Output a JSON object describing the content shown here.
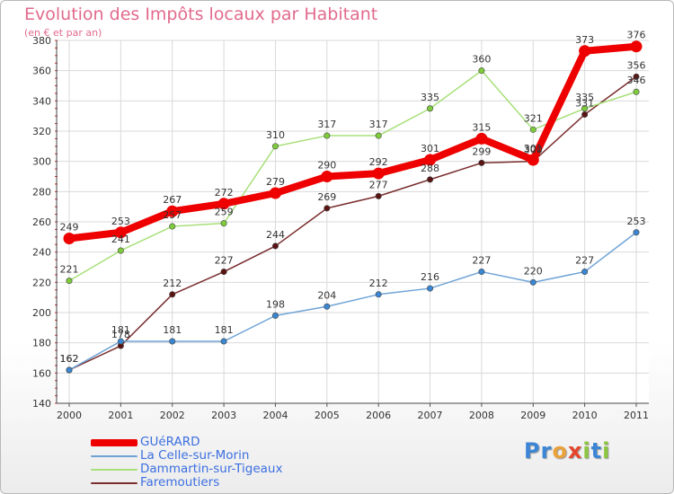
{
  "title": "Evolution des Impôts locaux par Habitant",
  "subtitle": "(en € et par an)",
  "logo": {
    "text": "Proxiti",
    "letters": [
      {
        "char": "P",
        "color": "#3d86d6"
      },
      {
        "char": "r",
        "color": "#3d86d6"
      },
      {
        "char": "o",
        "color": "#e9a23b"
      },
      {
        "char": "x",
        "color": "#e6452d"
      },
      {
        "char": "i",
        "color": "#8cc63f"
      },
      {
        "char": "t",
        "color": "#3d86d6"
      },
      {
        "char": "i",
        "color": "#8cc63f"
      }
    ]
  },
  "chart_data": {
    "type": "line",
    "title": "Evolution des Impôts locaux par Habitant",
    "subtitle": "(en € et par an)",
    "xlabel": "",
    "ylabel": "",
    "x": [
      2000,
      2001,
      2002,
      2003,
      2004,
      2005,
      2006,
      2007,
      2008,
      2009,
      2010,
      2011
    ],
    "ylim": [
      140,
      380
    ],
    "yticks": [
      140,
      160,
      180,
      200,
      220,
      240,
      260,
      280,
      300,
      320,
      340,
      360,
      380
    ],
    "grid": true,
    "legend_position": "bottom-left",
    "series": [
      {
        "name": "GUéRARD",
        "color": "#ee0000",
        "marker": "#ee0000",
        "weight": "bold",
        "values": [
          249,
          253,
          267,
          272,
          279,
          290,
          292,
          301,
          315,
          301,
          373,
          376
        ]
      },
      {
        "name": "La Celle-sur-Morin",
        "color": "#6fa3d6",
        "marker": "#3a86d1",
        "weight": "thin",
        "values": [
          162,
          181,
          181,
          181,
          198,
          204,
          212,
          216,
          227,
          220,
          227,
          253
        ]
      },
      {
        "name": "Dammartin-sur-Tigeaux",
        "color": "#a8e07a",
        "marker": "#7ecb3b",
        "weight": "thin",
        "values": [
          221,
          241,
          257,
          259,
          310,
          317,
          317,
          335,
          360,
          321,
          335,
          346
        ]
      },
      {
        "name": "Faremoutiers",
        "color": "#7a2e2e",
        "marker": "#5a1414",
        "weight": "thin",
        "values": [
          162,
          178,
          212,
          227,
          244,
          269,
          277,
          288,
          299,
          300,
          331,
          356
        ]
      }
    ],
    "data_labels": [
      {
        "series": 3,
        "x": 2000,
        "y": 162,
        "text": "162"
      },
      {
        "series": 3,
        "x": 2001,
        "y": 178,
        "text": "178"
      },
      {
        "series": 3,
        "x": 2002,
        "y": 212,
        "text": "212"
      },
      {
        "series": 3,
        "x": 2003,
        "y": 227,
        "text": "227"
      },
      {
        "series": 3,
        "x": 2004,
        "y": 244,
        "text": "244"
      },
      {
        "series": 3,
        "x": 2005,
        "y": 269,
        "text": "269"
      },
      {
        "series": 3,
        "x": 2006,
        "y": 277,
        "text": "277"
      },
      {
        "series": 3,
        "x": 2007,
        "y": 288,
        "text": "288"
      },
      {
        "series": 3,
        "x": 2008,
        "y": 299,
        "text": "299"
      },
      {
        "series": 3,
        "x": 2009,
        "y": 300,
        "text": "300"
      },
      {
        "series": 3,
        "x": 2010,
        "y": 331,
        "text": "331"
      },
      {
        "series": 3,
        "x": 2011,
        "y": 356,
        "text": "356"
      },
      {
        "series": 2,
        "x": 2000,
        "y": 221,
        "text": "221"
      },
      {
        "series": 2,
        "x": 2001,
        "y": 241,
        "text": "241"
      },
      {
        "series": 2,
        "x": 2002,
        "y": 257,
        "text": "257"
      },
      {
        "series": 2,
        "x": 2003,
        "y": 259,
        "text": "259"
      },
      {
        "series": 2,
        "x": 2004,
        "y": 310,
        "text": "310"
      },
      {
        "series": 2,
        "x": 2005,
        "y": 317,
        "text": "317"
      },
      {
        "series": 2,
        "x": 2006,
        "y": 317,
        "text": "317"
      },
      {
        "series": 2,
        "x": 2007,
        "y": 335,
        "text": "335"
      },
      {
        "series": 2,
        "x": 2008,
        "y": 360,
        "text": "360"
      },
      {
        "series": 2,
        "x": 2009,
        "y": 321,
        "text": "321"
      },
      {
        "series": 2,
        "x": 2010,
        "y": 335,
        "text": "335"
      },
      {
        "series": 2,
        "x": 2011,
        "y": 346,
        "text": "346"
      },
      {
        "series": 1,
        "x": 2000,
        "y": 162,
        "text": "162"
      },
      {
        "series": 1,
        "x": 2001,
        "y": 181,
        "text": "181"
      },
      {
        "series": 1,
        "x": 2002,
        "y": 181,
        "text": "181"
      },
      {
        "series": 1,
        "x": 2003,
        "y": 181,
        "text": "181"
      },
      {
        "series": 1,
        "x": 2004,
        "y": 198,
        "text": "198"
      },
      {
        "series": 1,
        "x": 2005,
        "y": 204,
        "text": "204"
      },
      {
        "series": 1,
        "x": 2006,
        "y": 212,
        "text": "212"
      },
      {
        "series": 1,
        "x": 2007,
        "y": 216,
        "text": "216"
      },
      {
        "series": 1,
        "x": 2008,
        "y": 227,
        "text": "227"
      },
      {
        "series": 1,
        "x": 2009,
        "y": 220,
        "text": "220"
      },
      {
        "series": 1,
        "x": 2010,
        "y": 227,
        "text": "227"
      },
      {
        "series": 1,
        "x": 2011,
        "y": 253,
        "text": "253"
      },
      {
        "series": 0,
        "x": 2000,
        "y": 249,
        "text": "249"
      },
      {
        "series": 0,
        "x": 2001,
        "y": 253,
        "text": "253"
      },
      {
        "series": 0,
        "x": 2002,
        "y": 267,
        "text": "267"
      },
      {
        "series": 0,
        "x": 2003,
        "y": 272,
        "text": "272"
      },
      {
        "series": 0,
        "x": 2004,
        "y": 279,
        "text": "279"
      },
      {
        "series": 0,
        "x": 2005,
        "y": 290,
        "text": "290"
      },
      {
        "series": 0,
        "x": 2006,
        "y": 292,
        "text": "292"
      },
      {
        "series": 0,
        "x": 2007,
        "y": 301,
        "text": "301"
      },
      {
        "series": 0,
        "x": 2008,
        "y": 315,
        "text": "315"
      },
      {
        "series": 0,
        "x": 2009,
        "y": 301,
        "text": "301"
      },
      {
        "series": 0,
        "x": 2010,
        "y": 373,
        "text": "373"
      },
      {
        "series": 0,
        "x": 2011,
        "y": 376,
        "text": "376"
      }
    ]
  }
}
